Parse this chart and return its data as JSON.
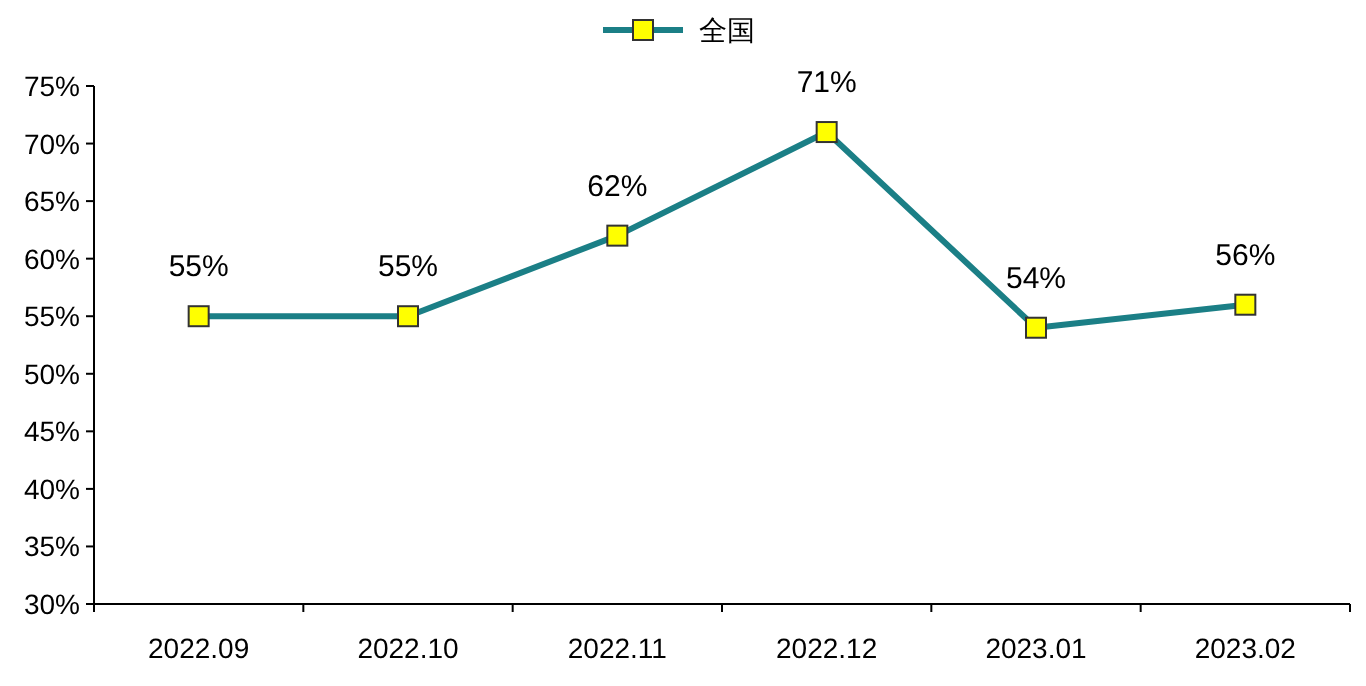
{
  "chart_data": {
    "type": "line",
    "legend": "top",
    "marker": "square",
    "line_style": "solid",
    "grid": false,
    "categories": [
      "2022.09",
      "2022.10",
      "2022.11",
      "2022.12",
      "2023.01",
      "2023.02"
    ],
    "series": [
      {
        "name": "全国",
        "color": "#1b7f86",
        "values": [
          55,
          55,
          62,
          71,
          54,
          56
        ],
        "value_labels": [
          "55%",
          "55%",
          "62%",
          "71%",
          "54%",
          "56%"
        ]
      }
    ],
    "ylim": [
      30,
      75
    ],
    "yticks": [
      {
        "value": 30,
        "label": "30%"
      },
      {
        "value": 35,
        "label": "35%"
      },
      {
        "value": 40,
        "label": "40%"
      },
      {
        "value": 45,
        "label": "45%"
      },
      {
        "value": 50,
        "label": "50%"
      },
      {
        "value": 55,
        "label": "55%"
      },
      {
        "value": 60,
        "label": "60%"
      },
      {
        "value": 65,
        "label": "65%"
      },
      {
        "value": 70,
        "label": "70%"
      },
      {
        "value": 75,
        "label": "75%"
      }
    ]
  }
}
